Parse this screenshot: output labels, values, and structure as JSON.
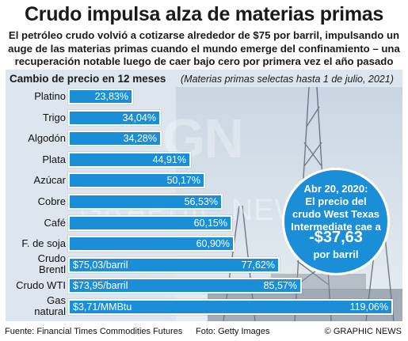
{
  "title": "Crudo impulsa alza de materias primas",
  "subtitle": "El petróleo crudo volvió a cotizarse alrededor de $75 por barril, impulsando un auge de las materias primas cuando el mundo emerge del confinamiento – una recuperación notable luego de caer bajo cero por primera vez el año pasado",
  "chart_data": {
    "type": "bar",
    "orientation": "horizontal",
    "title": "Cambio de precio en 12 meses",
    "note": "(Materias primas selectas hasta 1 de julio, 2021)",
    "categories": [
      "Platino",
      "Trigo",
      "Algodón",
      "Plata",
      "Azúcar",
      "Cobre",
      "Café",
      "F. de soja",
      "Crudo Brentl",
      "Crudo WTI",
      "Gas natural"
    ],
    "values": [
      23.83,
      34.04,
      34.28,
      44.91,
      50.17,
      56.53,
      60.15,
      60.9,
      77.62,
      85.57,
      119.06
    ],
    "value_labels": [
      "23,83%",
      "34,04%",
      "34,28%",
      "44,91%",
      "50,17%",
      "56,53%",
      "60,15%",
      "60,90%",
      "77,62%",
      "85,57%",
      "119,06%"
    ],
    "price_labels": [
      "",
      "",
      "",
      "",
      "",
      "",
      "",
      "",
      "$75,03/barril",
      "$73,95/barril",
      "$3,71/MMBtu"
    ],
    "bar_color": "#1a8fd8"
  },
  "callout": {
    "line1": "Abr 20, 2020:",
    "line2": "El precio del",
    "line3": "crudo West Texas",
    "line4": "Intermediate cae a",
    "value": "-$37,63",
    "unit": "por barril"
  },
  "watermark": "GRAPHIC NEWS",
  "watermark_logo": "GN",
  "footer": {
    "source": "Fuente: Financial Times Commodities Futures",
    "photo": "Foto: Getty Images",
    "brand": "© GRAPHIC NEWS"
  },
  "colors": {
    "accent": "#1a8fd8",
    "panel": "#dde6ee"
  }
}
